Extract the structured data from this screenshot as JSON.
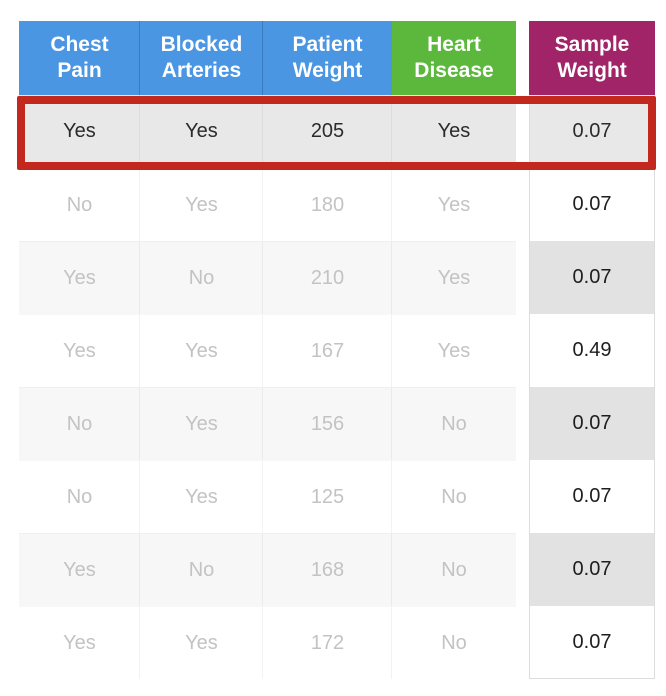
{
  "header": {
    "cells": [
      {
        "label": "Chest\nPain",
        "bg": "#4a96e2"
      },
      {
        "label": "Blocked\nArteries",
        "bg": "#4a96e2"
      },
      {
        "label": "Patient\nWeight",
        "bg": "#4a96e2"
      },
      {
        "label": "Heart\nDisease",
        "bg": "#5cb83c"
      },
      {
        "label": "Sample\nWeight",
        "bg": "#a12368"
      }
    ]
  },
  "rows": [
    [
      "Yes",
      "Yes",
      "205",
      "Yes",
      "0.07"
    ],
    [
      "No",
      "Yes",
      "180",
      "Yes",
      "0.07"
    ],
    [
      "Yes",
      "No",
      "210",
      "Yes",
      "0.07"
    ],
    [
      "Yes",
      "Yes",
      "167",
      "Yes",
      "0.49"
    ],
    [
      "No",
      "Yes",
      "156",
      "No",
      "0.07"
    ],
    [
      "No",
      "Yes",
      "125",
      "No",
      "0.07"
    ],
    [
      "Yes",
      "No",
      "168",
      "No",
      "0.07"
    ],
    [
      "Yes",
      "Yes",
      "172",
      "No",
      "0.07"
    ]
  ],
  "highlight": {
    "row_index": 0,
    "border_color": "#c2281e"
  },
  "colors": {
    "header_blue": "#4a96e2",
    "header_green": "#5cb83c",
    "header_magenta": "#a12368",
    "highlight_red": "#c2281e",
    "highlight_row_bg": "#e9e8e8",
    "shaded_row_bg": "#f8f7f8",
    "shaded_sample_bg": "#e3e2e3",
    "faded_text": "#c3c3c3",
    "dark_text": "#2b2b2b"
  },
  "chart_data": {
    "type": "table",
    "columns": [
      "Chest Pain",
      "Blocked Arteries",
      "Patient Weight",
      "Heart Disease",
      "Sample Weight"
    ],
    "rows": [
      [
        "Yes",
        "Yes",
        205,
        "Yes",
        0.07
      ],
      [
        "No",
        "Yes",
        180,
        "Yes",
        0.07
      ],
      [
        "Yes",
        "No",
        210,
        "Yes",
        0.07
      ],
      [
        "Yes",
        "Yes",
        167,
        "Yes",
        0.49
      ],
      [
        "No",
        "Yes",
        156,
        "No",
        0.07
      ],
      [
        "No",
        "Yes",
        125,
        "No",
        0.07
      ],
      [
        "Yes",
        "No",
        168,
        "No",
        0.07
      ],
      [
        "Yes",
        "Yes",
        172,
        "No",
        0.07
      ]
    ],
    "highlighted_row_index": 0,
    "notes": "First row outlined in red; Sample Weight column visually separated with alternating gray shading; non-highlighted feature rows rendered in faded gray"
  }
}
